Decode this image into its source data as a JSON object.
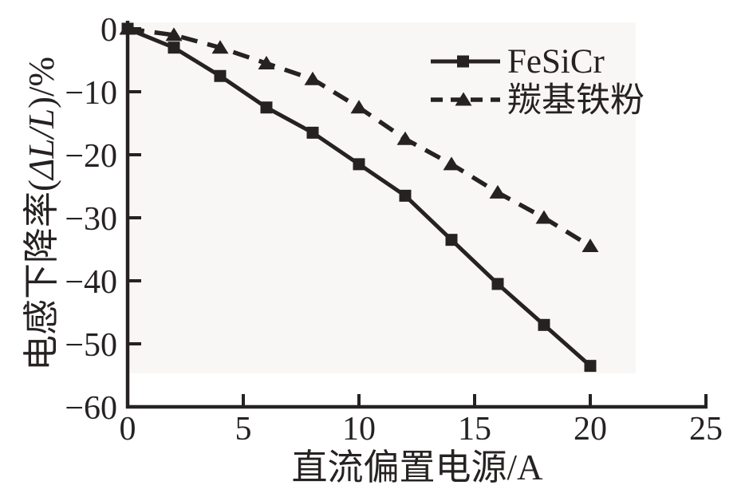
{
  "figure": {
    "background_color": "#ffffff",
    "ink_color": "#272222",
    "scan_tint_color": "#f8f7f6"
  },
  "chart_data": {
    "type": "line",
    "title": "",
    "xlabel": "直流偏置电源/A",
    "ylabel": "电感下降率(ΔL/L)/%",
    "ylabel_parts": [
      {
        "text": "电感下降率(",
        "italic": false
      },
      {
        "text": "ΔL/L",
        "italic": true
      },
      {
        "text": ")/%",
        "italic": false
      }
    ],
    "xlim": [
      0,
      25
    ],
    "ylim": [
      -60,
      0
    ],
    "xticks": [
      0,
      5,
      10,
      15,
      20,
      25
    ],
    "yticks": [
      0,
      -10,
      -20,
      -30,
      -40,
      -50,
      -60
    ],
    "grid": false,
    "legend_position": "upper-right-inside",
    "x": [
      0,
      2,
      4,
      6,
      8,
      10,
      12,
      14,
      16,
      18,
      20
    ],
    "series": [
      {
        "name": "FeSiCr",
        "line_style": "solid",
        "marker": "filled-square",
        "values": [
          0,
          -3,
          -7.5,
          -12.5,
          -16.5,
          -21.5,
          -26.5,
          -33.5,
          -40.5,
          -47,
          -53.5
        ]
      },
      {
        "name": "羰基铁粉",
        "line_style": "dashed",
        "marker": "filled-triangle",
        "values": [
          0,
          -1,
          -3,
          -5.5,
          -8,
          -12.5,
          -17.5,
          -21.5,
          -26,
          -30,
          -34.5
        ]
      }
    ]
  }
}
